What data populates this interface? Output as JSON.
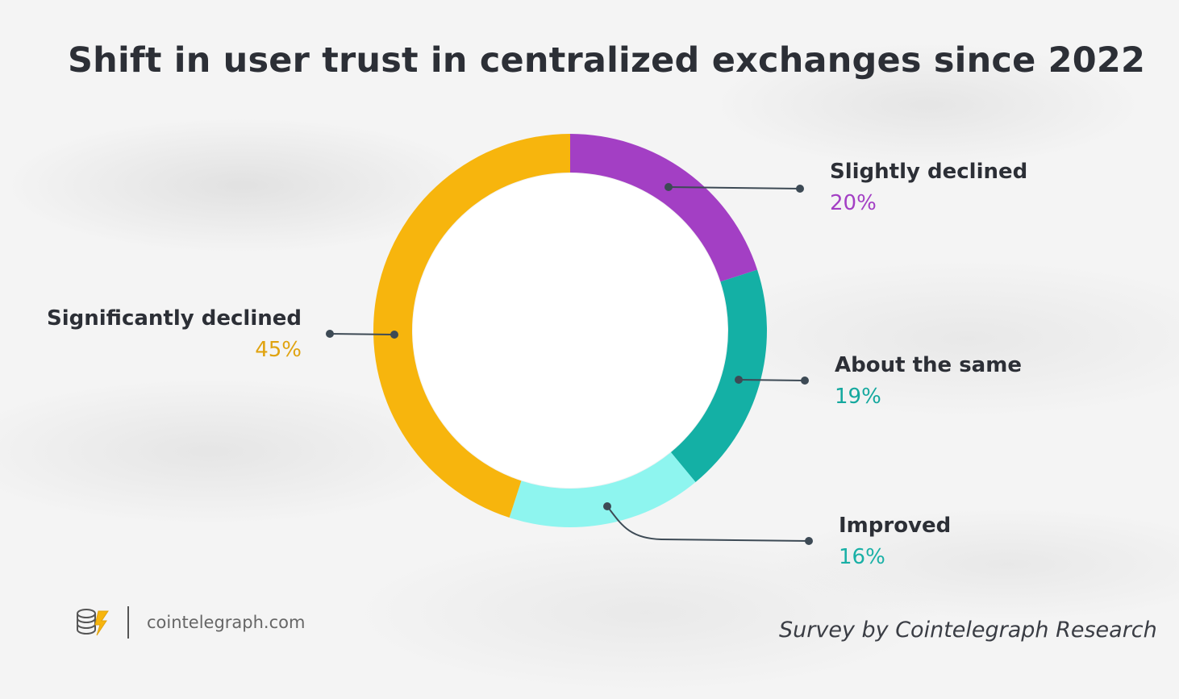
{
  "chart_data": {
    "type": "pie",
    "donut": true,
    "title": "Shift in user trust in centralized exchanges since 2022",
    "slices": [
      {
        "label": "Slightly declined",
        "value": 20,
        "display": "20%",
        "color": "#a33fc4"
      },
      {
        "label": "About the same",
        "value": 19,
        "display": "19%",
        "color": "#14b0a5"
      },
      {
        "label": "Improved",
        "value": 16,
        "display": "16%",
        "color": "#8ef5ef"
      },
      {
        "label": "Significantly declined",
        "value": 45,
        "display": "45%",
        "color": "#f7b50d"
      }
    ],
    "source": "Survey by Cointelegraph Research"
  },
  "footer": {
    "logo_icon": "cointelegraph-logo-icon",
    "site": "cointelegraph.com"
  }
}
